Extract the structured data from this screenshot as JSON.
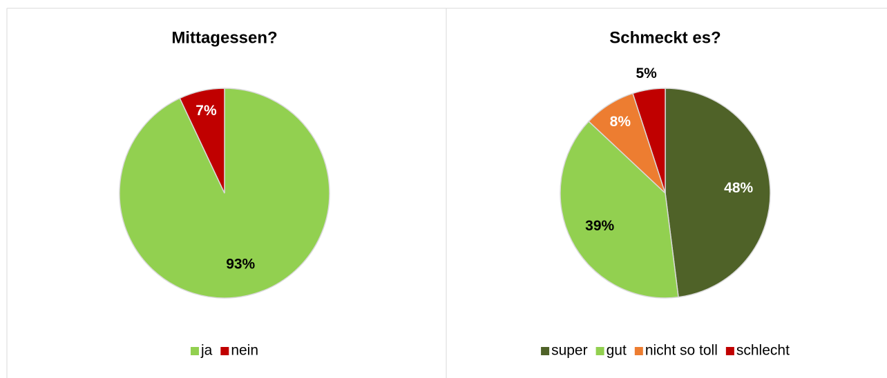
{
  "chart_data": [
    {
      "type": "pie",
      "title": "Mittagessen?",
      "categories": [
        "ja",
        "nein"
      ],
      "values": [
        93,
        7
      ],
      "value_labels": [
        "93%",
        "7%"
      ],
      "colors": [
        "#92d050",
        "#c00000"
      ],
      "legend": "bottom"
    },
    {
      "type": "pie",
      "title": "Schmeckt es?",
      "categories": [
        "super",
        "gut",
        "nicht so toll",
        "schlecht"
      ],
      "values": [
        48,
        39,
        8,
        5
      ],
      "value_labels": [
        "48%",
        "39%",
        "8%",
        "5%"
      ],
      "colors": [
        "#4f6228",
        "#92d050",
        "#ed7d31",
        "#c00000"
      ],
      "legend": "bottom"
    }
  ]
}
